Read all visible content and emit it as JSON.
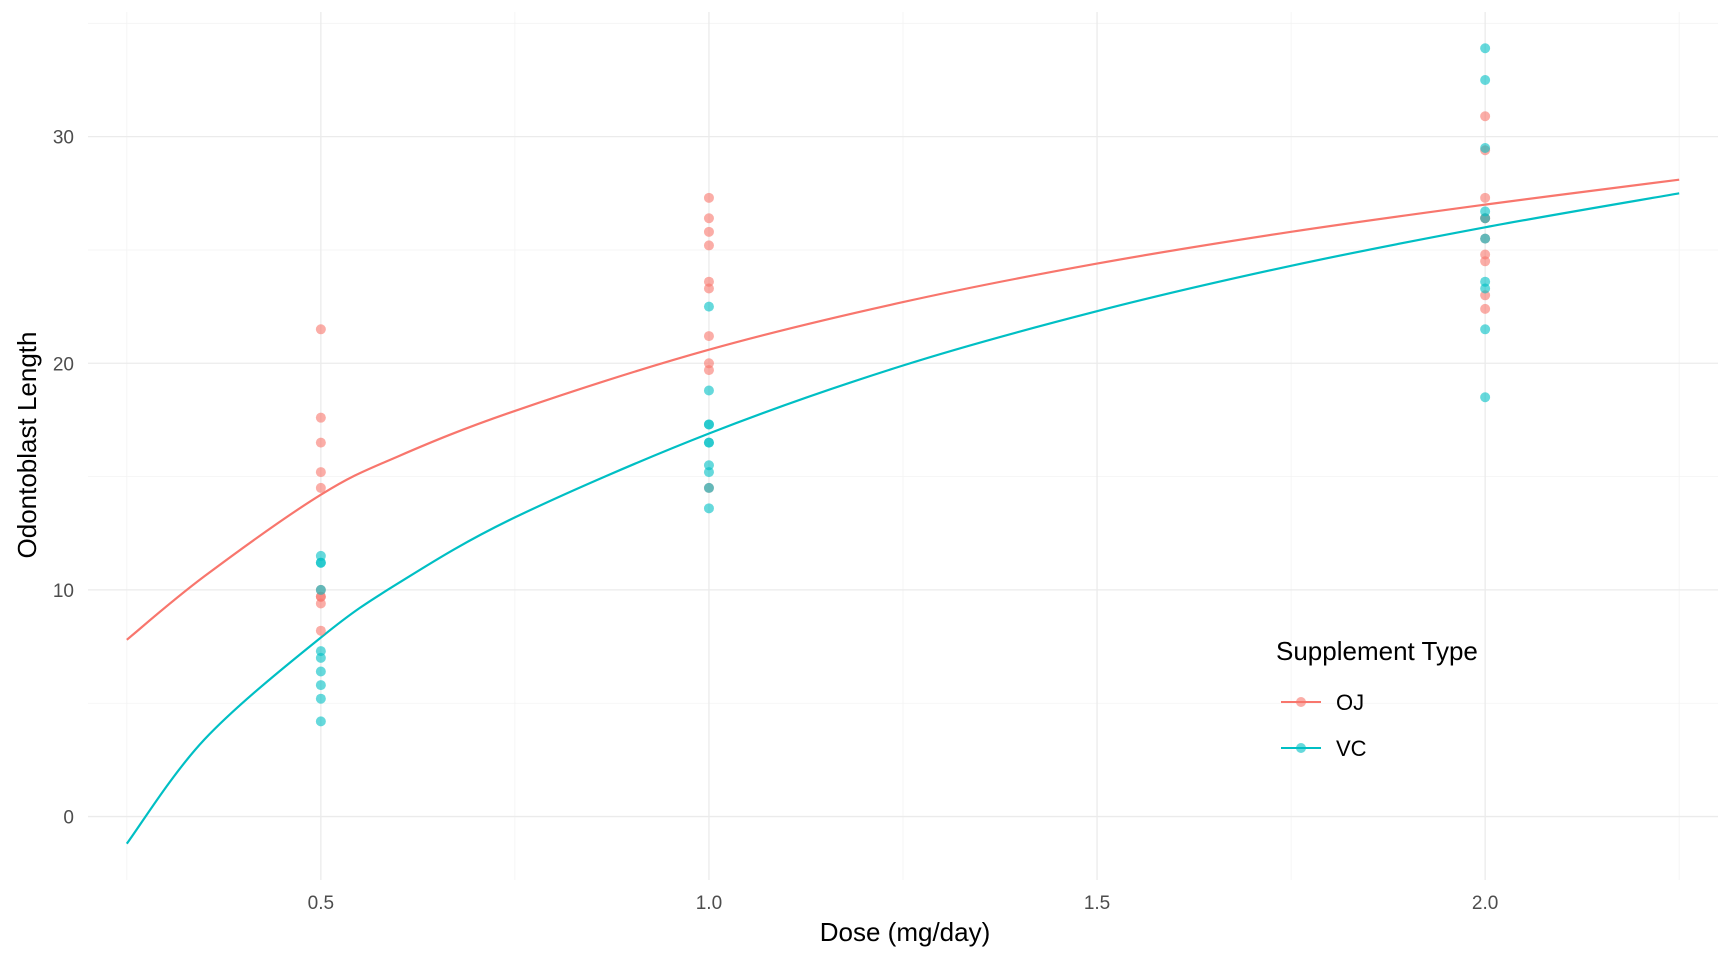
{
  "chart_data": {
    "type": "scatter",
    "xlabel": "Dose (mg/day)",
    "ylabel": "Odontoblast Length",
    "xlim": [
      0.2,
      2.3
    ],
    "ylim": [
      -2.8,
      35.5
    ],
    "x_ticks": [
      0.5,
      1.0,
      1.5,
      2.0
    ],
    "x_tick_labels": [
      "0.5",
      "1.0",
      "1.5",
      "2.0"
    ],
    "y_ticks": [
      0,
      10,
      20,
      30
    ],
    "y_tick_labels": [
      "0",
      "10",
      "20",
      "30"
    ],
    "grid": true,
    "legend": {
      "title": "Supplement Type",
      "position": "bottom-right"
    },
    "series": [
      {
        "name": "OJ",
        "color": "#F8766D",
        "points": [
          [
            0.5,
            21.5
          ],
          [
            0.5,
            17.6
          ],
          [
            0.5,
            16.5
          ],
          [
            0.5,
            15.2
          ],
          [
            0.5,
            14.5
          ],
          [
            0.5,
            10.0
          ],
          [
            0.5,
            9.7
          ],
          [
            0.5,
            9.7
          ],
          [
            0.5,
            9.4
          ],
          [
            0.5,
            8.2
          ],
          [
            1.0,
            27.3
          ],
          [
            1.0,
            26.4
          ],
          [
            1.0,
            25.8
          ],
          [
            1.0,
            25.2
          ],
          [
            1.0,
            23.6
          ],
          [
            1.0,
            23.3
          ],
          [
            1.0,
            21.2
          ],
          [
            1.0,
            20.0
          ],
          [
            1.0,
            19.7
          ],
          [
            1.0,
            14.5
          ],
          [
            2.0,
            30.9
          ],
          [
            2.0,
            29.4
          ],
          [
            2.0,
            27.3
          ],
          [
            2.0,
            26.4
          ],
          [
            2.0,
            26.4
          ],
          [
            2.0,
            25.5
          ],
          [
            2.0,
            24.8
          ],
          [
            2.0,
            24.5
          ],
          [
            2.0,
            23.0
          ],
          [
            2.0,
            22.4
          ]
        ],
        "trend": [
          [
            0.25,
            7.8
          ],
          [
            0.35,
            10.6
          ],
          [
            0.5,
            14.2
          ],
          [
            0.6,
            15.9
          ],
          [
            0.75,
            17.9
          ],
          [
            1.0,
            20.6
          ],
          [
            1.25,
            22.7
          ],
          [
            1.5,
            24.4
          ],
          [
            1.75,
            25.8
          ],
          [
            2.0,
            27.0
          ],
          [
            2.25,
            28.1
          ]
        ]
      },
      {
        "name": "VC",
        "color": "#00BFC4",
        "points": [
          [
            0.5,
            11.5
          ],
          [
            0.5,
            11.2
          ],
          [
            0.5,
            11.2
          ],
          [
            0.5,
            10.0
          ],
          [
            0.5,
            7.3
          ],
          [
            0.5,
            7.0
          ],
          [
            0.5,
            6.4
          ],
          [
            0.5,
            5.8
          ],
          [
            0.5,
            5.2
          ],
          [
            0.5,
            4.2
          ],
          [
            1.0,
            22.5
          ],
          [
            1.0,
            18.8
          ],
          [
            1.0,
            17.3
          ],
          [
            1.0,
            17.3
          ],
          [
            1.0,
            16.5
          ],
          [
            1.0,
            16.5
          ],
          [
            1.0,
            15.5
          ],
          [
            1.0,
            15.2
          ],
          [
            1.0,
            14.5
          ],
          [
            1.0,
            13.6
          ],
          [
            2.0,
            33.9
          ],
          [
            2.0,
            32.5
          ],
          [
            2.0,
            29.5
          ],
          [
            2.0,
            26.7
          ],
          [
            2.0,
            25.5
          ],
          [
            2.0,
            23.6
          ],
          [
            2.0,
            23.3
          ],
          [
            2.0,
            21.5
          ],
          [
            2.0,
            18.5
          ],
          [
            2.0,
            26.4
          ]
        ],
        "trend": [
          [
            0.25,
            -1.2
          ],
          [
            0.35,
            3.4
          ],
          [
            0.5,
            7.9
          ],
          [
            0.6,
            10.3
          ],
          [
            0.75,
            13.2
          ],
          [
            1.0,
            16.9
          ],
          [
            1.25,
            19.9
          ],
          [
            1.5,
            22.3
          ],
          [
            1.75,
            24.3
          ],
          [
            2.0,
            26.0
          ],
          [
            2.25,
            27.5
          ]
        ]
      }
    ]
  }
}
